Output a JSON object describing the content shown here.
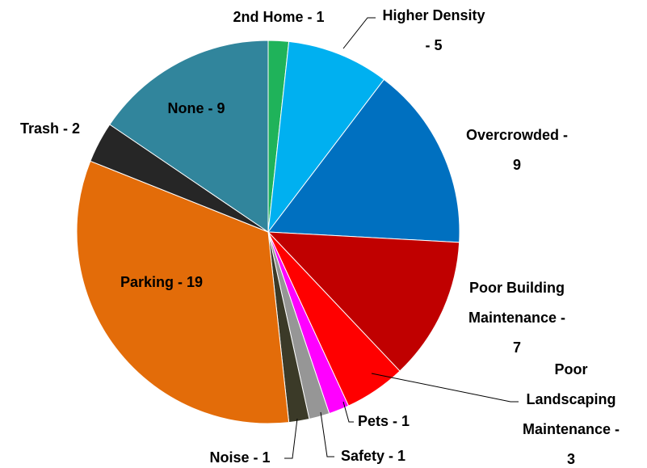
{
  "chart_data": {
    "type": "pie",
    "labels": [
      [
        "2nd Home - 1"
      ],
      [
        "Higher Density",
        "- 5"
      ],
      [
        "Overcrowded -",
        "9"
      ],
      [
        "Poor Building",
        "Maintenance -",
        "7"
      ],
      [
        "Poor",
        "Landscaping",
        "Maintenance -",
        "3"
      ],
      [
        "Pets - 1"
      ],
      [
        "Safety  - 1"
      ],
      [
        "Noise - 1"
      ],
      [
        "Parking  - 19"
      ],
      [
        "Trash - 2"
      ],
      [
        "None  - 9"
      ]
    ],
    "values": [
      1,
      5,
      9,
      7,
      3,
      1,
      1,
      1,
      19,
      2,
      9
    ],
    "colors": [
      "#1fb35a",
      "#00b0f0",
      "#0070c0",
      "#c00000",
      "#ff0000",
      "#ff00ff",
      "#969696",
      "#3b3a28",
      "#e36c09",
      "#262626",
      "#31859c"
    ]
  }
}
